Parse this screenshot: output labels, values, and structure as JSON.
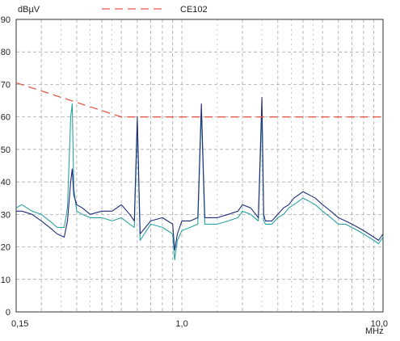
{
  "chart_data": {
    "type": "line",
    "xscale": "log",
    "xlim": [
      0.15,
      10.0
    ],
    "ylim": [
      0,
      90
    ],
    "grid": true,
    "ylabel": "dBµV",
    "xlabel": "MHz",
    "x_tick_labels": [
      {
        "value": 0.15,
        "label": "0,15"
      },
      {
        "value": 1.0,
        "label": "1,0"
      },
      {
        "value": 10.0,
        "label": "10,0"
      }
    ],
    "y_tick_labels": [
      "0",
      "10",
      "20",
      "30",
      "40",
      "50",
      "60",
      "70",
      "80",
      "90"
    ],
    "legend_placement": "top",
    "colors": {
      "limit": "#e05a4a",
      "series_a": "#1f2b78",
      "series_b": "#2aa3a0",
      "grid": "#9a9a9a",
      "frame": "#333333"
    },
    "limit_line": {
      "name": "CE102",
      "x": [
        0.15,
        0.5,
        10.0
      ],
      "y": [
        70.5,
        60.0,
        60.0
      ]
    },
    "series": [
      {
        "x": [
          0.15,
          0.16,
          0.18,
          0.2,
          0.22,
          0.24,
          0.26,
          0.27,
          0.28,
          0.285,
          0.29,
          0.3,
          0.32,
          0.35,
          0.4,
          0.45,
          0.5,
          0.55,
          0.58,
          0.6,
          0.62,
          0.7,
          0.8,
          0.9,
          0.92,
          0.95,
          1.0,
          1.1,
          1.2,
          1.25,
          1.3,
          1.5,
          1.7,
          1.9,
          2.0,
          2.2,
          2.4,
          2.5,
          2.55,
          2.6,
          2.8,
          3.0,
          3.2,
          3.4,
          3.6,
          3.8,
          4.0,
          4.3,
          4.6,
          5.0,
          5.5,
          6.0,
          6.5,
          7.0,
          7.5,
          8.0,
          8.5,
          9.0,
          9.5,
          10.0
        ],
        "values": [
          31,
          31,
          30,
          28,
          26,
          24,
          23,
          28,
          40,
          44,
          36,
          33,
          32,
          30,
          31,
          31,
          33,
          30,
          28,
          60,
          24,
          28,
          29,
          27,
          19,
          24,
          28,
          28,
          29,
          64,
          29,
          29,
          30,
          31,
          33,
          32,
          29,
          66,
          30,
          28,
          28,
          30,
          32,
          33,
          35,
          36,
          37,
          36,
          35,
          33,
          31,
          29,
          28,
          27,
          26,
          25,
          24,
          23,
          22,
          24
        ]
      },
      {
        "x": [
          0.15,
          0.16,
          0.18,
          0.2,
          0.22,
          0.24,
          0.26,
          0.27,
          0.28,
          0.285,
          0.29,
          0.3,
          0.32,
          0.35,
          0.4,
          0.45,
          0.5,
          0.55,
          0.58,
          0.6,
          0.62,
          0.7,
          0.8,
          0.9,
          0.92,
          0.95,
          1.0,
          1.1,
          1.2,
          1.25,
          1.3,
          1.5,
          1.7,
          1.9,
          2.0,
          2.2,
          2.4,
          2.5,
          2.55,
          2.6,
          2.8,
          3.0,
          3.2,
          3.4,
          3.6,
          3.8,
          4.0,
          4.3,
          4.6,
          5.0,
          5.5,
          6.0,
          6.5,
          7.0,
          7.5,
          8.0,
          8.5,
          9.0,
          9.5,
          10.0
        ],
        "values": [
          32,
          33,
          31,
          30,
          28,
          26,
          26,
          32,
          60,
          64,
          38,
          31,
          30,
          29,
          29,
          28,
          29,
          27,
          26,
          58,
          22,
          27,
          26,
          24,
          16,
          22,
          25,
          26,
          27,
          62,
          27,
          27,
          28,
          29,
          31,
          30,
          28,
          62,
          28,
          27,
          27,
          29,
          30,
          32,
          33,
          34,
          35,
          34,
          33,
          31,
          29,
          27,
          27,
          26,
          25,
          24,
          23,
          22,
          21,
          23
        ]
      }
    ]
  }
}
